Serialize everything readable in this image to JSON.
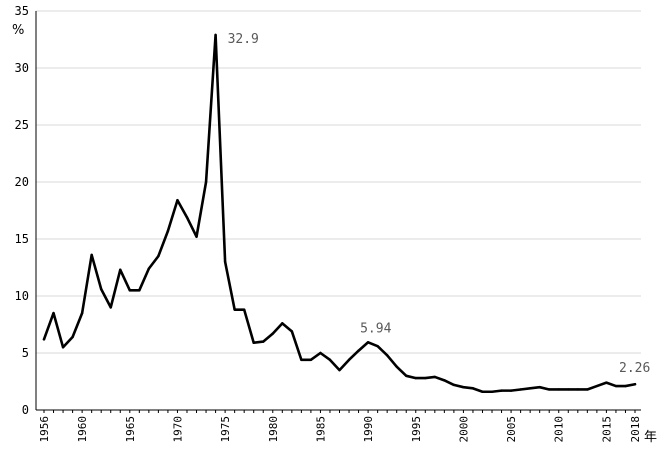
{
  "chart_data": {
    "type": "line",
    "title": "",
    "ylabel": "%",
    "xlabel": "年",
    "ylim": [
      0,
      35
    ],
    "yticks": [
      0,
      5,
      10,
      15,
      20,
      25,
      30,
      35
    ],
    "xlim": [
      1956,
      2018
    ],
    "xticks": [
      1956,
      1960,
      1965,
      1970,
      1975,
      1980,
      1985,
      1990,
      1995,
      2000,
      2005,
      2010,
      2015,
      2018
    ],
    "grid": "horizontal",
    "legend": "none",
    "series_color": "#000000",
    "annotation_color": "#595959",
    "x": [
      1956,
      1957,
      1958,
      1959,
      1960,
      1961,
      1962,
      1963,
      1964,
      1965,
      1966,
      1967,
      1968,
      1969,
      1970,
      1971,
      1972,
      1973,
      1974,
      1975,
      1976,
      1977,
      1978,
      1979,
      1980,
      1981,
      1982,
      1983,
      1984,
      1985,
      1986,
      1987,
      1988,
      1989,
      1990,
      1991,
      1992,
      1993,
      1994,
      1995,
      1996,
      1997,
      1998,
      1999,
      2000,
      2001,
      2002,
      2003,
      2004,
      2005,
      2006,
      2007,
      2008,
      2009,
      2010,
      2011,
      2012,
      2013,
      2014,
      2015,
      2016,
      2017,
      2018
    ],
    "series": [
      {
        "values": [
          6.2,
          8.5,
          5.5,
          6.4,
          8.5,
          13.6,
          10.6,
          9.0,
          12.3,
          10.5,
          10.5,
          12.4,
          13.5,
          15.7,
          18.4,
          16.9,
          15.2,
          20.0,
          32.9,
          13.0,
          8.8,
          8.8,
          5.9,
          6.0,
          6.7,
          7.6,
          6.9,
          4.4,
          4.4,
          5.0,
          4.4,
          3.5,
          4.4,
          5.2,
          5.94,
          5.6,
          4.8,
          3.8,
          3.0,
          2.8,
          2.8,
          2.9,
          2.6,
          2.2,
          2.0,
          1.9,
          1.6,
          1.6,
          1.7,
          1.7,
          1.8,
          1.9,
          2.0,
          1.8,
          1.8,
          1.8,
          1.8,
          1.8,
          2.1,
          2.4,
          2.1,
          2.1,
          2.26
        ]
      }
    ],
    "annotations": [
      {
        "x": 1974,
        "y": 32.9,
        "text": "32.9"
      },
      {
        "x": 1990,
        "y": 5.94,
        "text": "5.94"
      },
      {
        "x": 2018,
        "y": 2.26,
        "text": "2.26"
      }
    ]
  }
}
